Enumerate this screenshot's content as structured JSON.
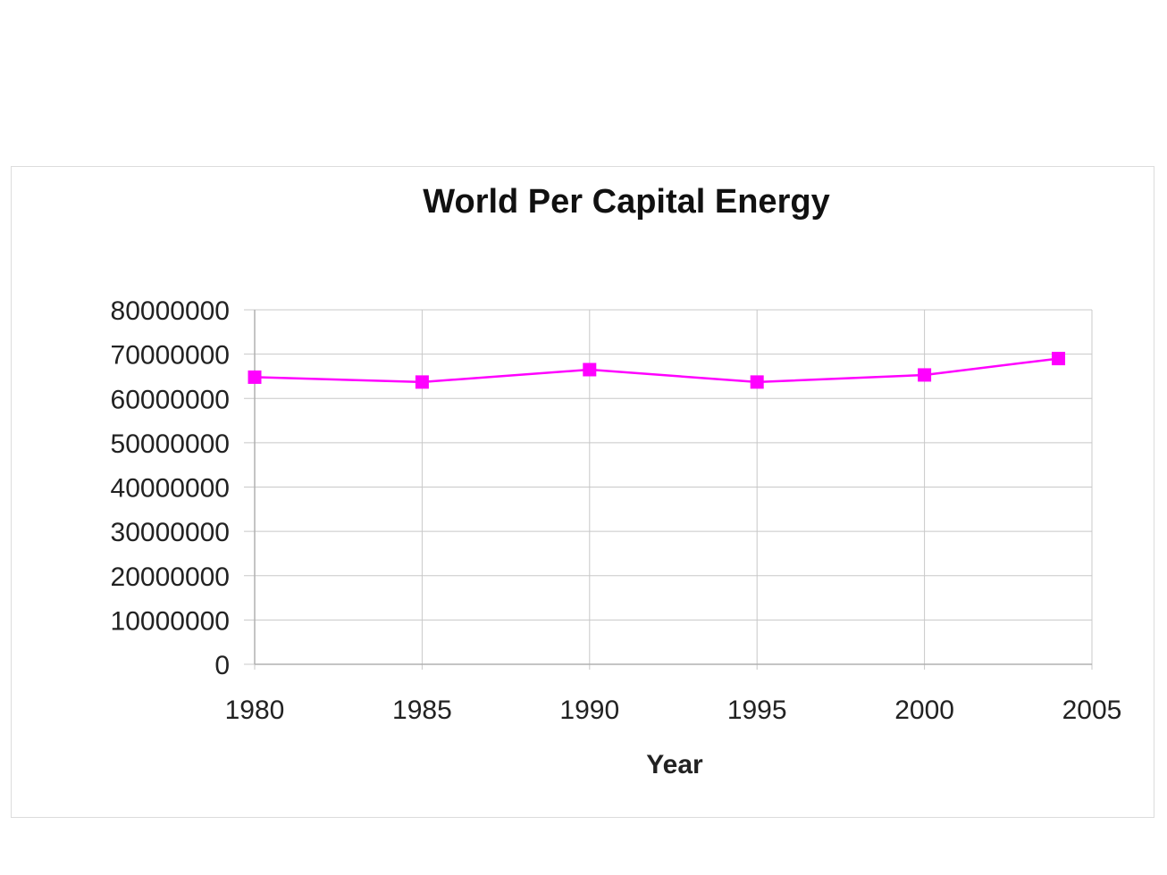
{
  "chart_data": {
    "type": "line",
    "title": "World Per Capital Energy",
    "xlabel": "Year",
    "ylabel": "",
    "x": [
      1980,
      1985,
      1990,
      1995,
      2000,
      2004
    ],
    "series": [
      {
        "values": [
          64800000,
          63700000,
          66500000,
          63700000,
          65300000,
          69000000
        ],
        "color": "#ff00ff",
        "marker": "square"
      }
    ],
    "xlim": [
      1980,
      2005
    ],
    "ylim": [
      0,
      80000000
    ],
    "x_ticks": [
      "1980",
      "1985",
      "1990",
      "1995",
      "2000",
      "2005"
    ],
    "y_ticks": [
      "0",
      "10000000",
      "20000000",
      "30000000",
      "40000000",
      "50000000",
      "60000000",
      "70000000",
      "80000000"
    ],
    "grid": true,
    "legend": "none"
  }
}
